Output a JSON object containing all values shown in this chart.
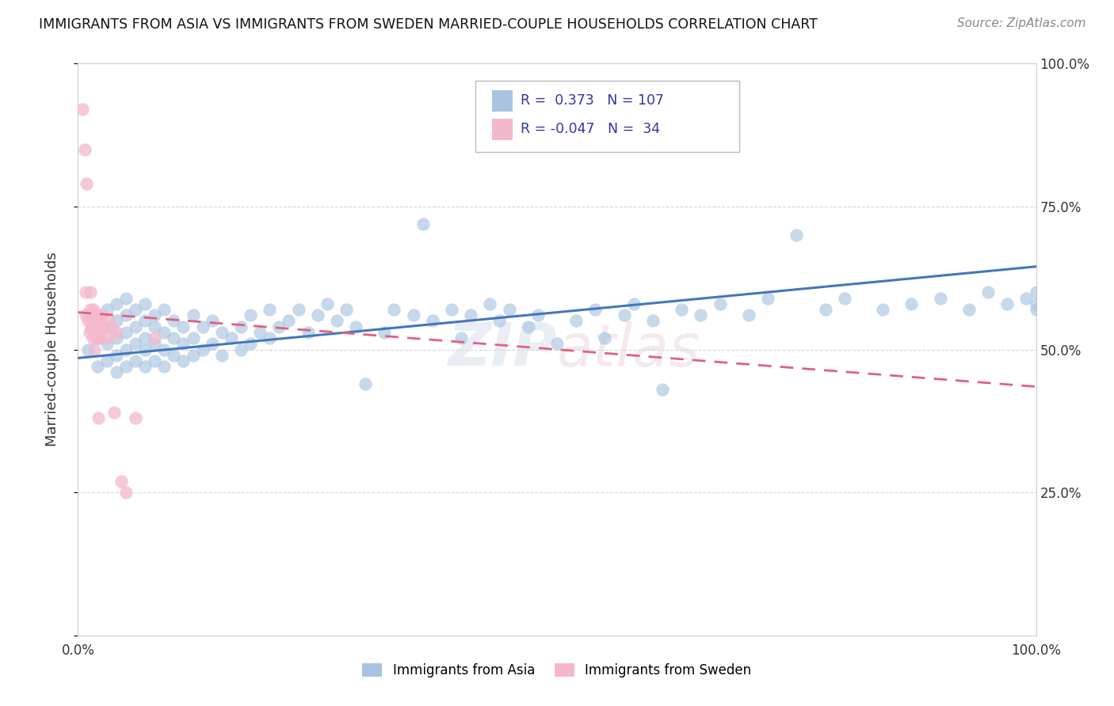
{
  "title": "IMMIGRANTS FROM ASIA VS IMMIGRANTS FROM SWEDEN MARRIED-COUPLE HOUSEHOLDS CORRELATION CHART",
  "source": "Source: ZipAtlas.com",
  "ylabel": "Married-couple Households",
  "xlim": [
    0,
    1.0
  ],
  "ylim": [
    0,
    1.0
  ],
  "blue_R": 0.373,
  "blue_N": 107,
  "pink_R": -0.047,
  "pink_N": 34,
  "blue_color": "#a8c4e0",
  "pink_color": "#f4b8cc",
  "blue_line_color": "#4477bb",
  "pink_line_color": "#e06080",
  "legend_label_blue": "Immigrants from Asia",
  "legend_label_pink": "Immigrants from Sweden",
  "background_color": "#ffffff",
  "grid_color": "#cccccc",
  "watermark": "ZIPatlas",
  "text_color": "#333333",
  "legend_text_color": "#3333aa",
  "blue_scatter_x": [
    0.01,
    0.02,
    0.02,
    0.02,
    0.03,
    0.03,
    0.03,
    0.03,
    0.04,
    0.04,
    0.04,
    0.04,
    0.04,
    0.05,
    0.05,
    0.05,
    0.05,
    0.05,
    0.06,
    0.06,
    0.06,
    0.06,
    0.07,
    0.07,
    0.07,
    0.07,
    0.07,
    0.08,
    0.08,
    0.08,
    0.08,
    0.09,
    0.09,
    0.09,
    0.09,
    0.1,
    0.1,
    0.1,
    0.11,
    0.11,
    0.11,
    0.12,
    0.12,
    0.12,
    0.13,
    0.13,
    0.14,
    0.14,
    0.15,
    0.15,
    0.16,
    0.17,
    0.17,
    0.18,
    0.18,
    0.19,
    0.2,
    0.2,
    0.21,
    0.22,
    0.23,
    0.24,
    0.25,
    0.26,
    0.27,
    0.28,
    0.29,
    0.3,
    0.32,
    0.33,
    0.35,
    0.36,
    0.37,
    0.39,
    0.4,
    0.41,
    0.43,
    0.44,
    0.45,
    0.47,
    0.48,
    0.5,
    0.52,
    0.54,
    0.55,
    0.57,
    0.58,
    0.6,
    0.61,
    0.63,
    0.65,
    0.67,
    0.7,
    0.72,
    0.75,
    0.78,
    0.8,
    0.84,
    0.87,
    0.9,
    0.93,
    0.95,
    0.97,
    0.99,
    1.0,
    1.0,
    1.0
  ],
  "blue_scatter_y": [
    0.5,
    0.47,
    0.52,
    0.56,
    0.48,
    0.51,
    0.54,
    0.57,
    0.46,
    0.49,
    0.52,
    0.55,
    0.58,
    0.47,
    0.5,
    0.53,
    0.56,
    0.59,
    0.48,
    0.51,
    0.54,
    0.57,
    0.47,
    0.5,
    0.52,
    0.55,
    0.58,
    0.48,
    0.51,
    0.54,
    0.56,
    0.47,
    0.5,
    0.53,
    0.57,
    0.49,
    0.52,
    0.55,
    0.48,
    0.51,
    0.54,
    0.49,
    0.52,
    0.56,
    0.5,
    0.54,
    0.51,
    0.55,
    0.49,
    0.53,
    0.52,
    0.5,
    0.54,
    0.51,
    0.56,
    0.53,
    0.52,
    0.57,
    0.54,
    0.55,
    0.57,
    0.53,
    0.56,
    0.58,
    0.55,
    0.57,
    0.54,
    0.44,
    0.53,
    0.57,
    0.56,
    0.72,
    0.55,
    0.57,
    0.52,
    0.56,
    0.58,
    0.55,
    0.57,
    0.54,
    0.56,
    0.51,
    0.55,
    0.57,
    0.52,
    0.56,
    0.58,
    0.55,
    0.43,
    0.57,
    0.56,
    0.58,
    0.56,
    0.59,
    0.7,
    0.57,
    0.59,
    0.57,
    0.58,
    0.59,
    0.57,
    0.6,
    0.58,
    0.59,
    0.57,
    0.6,
    0.58
  ],
  "pink_scatter_x": [
    0.005,
    0.007,
    0.008,
    0.008,
    0.009,
    0.01,
    0.011,
    0.012,
    0.013,
    0.013,
    0.014,
    0.015,
    0.015,
    0.016,
    0.016,
    0.017,
    0.018,
    0.018,
    0.019,
    0.02,
    0.021,
    0.022,
    0.023,
    0.025,
    0.027,
    0.03,
    0.032,
    0.035,
    0.038,
    0.04,
    0.045,
    0.05,
    0.06,
    0.08
  ],
  "pink_scatter_y": [
    0.92,
    0.85,
    0.56,
    0.6,
    0.79,
    0.55,
    0.56,
    0.53,
    0.57,
    0.6,
    0.54,
    0.56,
    0.52,
    0.54,
    0.57,
    0.5,
    0.53,
    0.56,
    0.52,
    0.54,
    0.38,
    0.55,
    0.52,
    0.56,
    0.54,
    0.52,
    0.55,
    0.54,
    0.39,
    0.53,
    0.27,
    0.25,
    0.38,
    0.52
  ],
  "blue_line_x0": 0.0,
  "blue_line_y0": 0.485,
  "blue_line_x1": 1.0,
  "blue_line_y1": 0.645,
  "pink_line_x0": 0.0,
  "pink_line_y0": 0.565,
  "pink_line_x1": 1.0,
  "pink_line_y1": 0.435
}
